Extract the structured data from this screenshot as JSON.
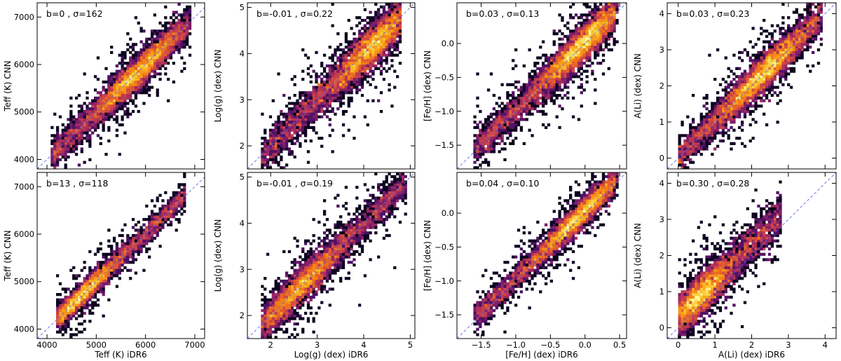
{
  "figure": {
    "colormap": "inferno-like density",
    "diagonal_color": "#5a6df0"
  },
  "chart_data": [
    {
      "type": "scatter",
      "subtype": "2d-density-histogram",
      "row": 0,
      "col": 0,
      "annotation": "b=0 , σ=162",
      "xlabel": "",
      "ylabel": "Teff (K) CNN",
      "xlim": [
        3800,
        7200
      ],
      "ylim": [
        3800,
        7300
      ],
      "xticks": [
        4000,
        5000,
        6000,
        7000
      ],
      "yticks": [
        4000,
        5000,
        6000,
        7000
      ],
      "xtick_labels": [
        "",
        "",
        "",
        ""
      ],
      "ytick_labels": [
        "4000",
        "5000",
        "6000",
        "7000"
      ],
      "distribution": {
        "x_range": [
          4100,
          6900
        ],
        "x_peak": 5800,
        "scatter_sd": 160,
        "bias": 0,
        "density": 1.0
      },
      "reference_line": "y = x"
    },
    {
      "type": "scatter",
      "subtype": "2d-density-histogram",
      "row": 0,
      "col": 1,
      "annotation": "b=-0.01 , σ=0.22",
      "xlabel": "",
      "ylabel": "Log(g) (dex) CNN",
      "xlim": [
        1.5,
        5.1
      ],
      "ylim": [
        1.5,
        5.1
      ],
      "xticks": [
        2,
        3,
        4,
        5
      ],
      "yticks": [
        2,
        3,
        4,
        5
      ],
      "xtick_labels": [
        "",
        "",
        "",
        ""
      ],
      "ytick_labels": [
        "2",
        "3",
        "4",
        "5"
      ],
      "distribution": {
        "x_range": [
          1.8,
          4.8
        ],
        "x_peak": 4.2,
        "scatter_sd": 0.22,
        "bias": -0.01,
        "density": 1.0
      },
      "reference_line": "y = x"
    },
    {
      "type": "scatter",
      "subtype": "2d-density-histogram",
      "row": 0,
      "col": 2,
      "annotation": "b=0.03 , σ=0.13",
      "xlabel": "",
      "ylabel": "[Fe/H] (dex) CNN",
      "xlim": [
        -1.85,
        0.6
      ],
      "ylim": [
        -1.85,
        0.6
      ],
      "xticks": [
        -1.5,
        -1.0,
        -0.5,
        0.0,
        0.5
      ],
      "yticks": [
        -1.5,
        -1.0,
        -0.5,
        0.0
      ],
      "xtick_labels": [
        "",
        "",
        "",
        "",
        ""
      ],
      "ytick_labels": [
        "−1.5",
        "−1.0",
        "−0.5",
        "0.0"
      ],
      "distribution": {
        "x_range": [
          -1.6,
          0.45
        ],
        "x_peak": -0.05,
        "scatter_sd": 0.13,
        "bias": 0.03,
        "density": 1.0
      },
      "reference_line": "y = x"
    },
    {
      "type": "scatter",
      "subtype": "2d-density-histogram",
      "row": 0,
      "col": 3,
      "annotation": "b=0.03 , σ=0.23",
      "xlabel": "",
      "ylabel": "A(Li) (dex) CNN",
      "xlim": [
        -0.3,
        4.3
      ],
      "ylim": [
        -0.3,
        4.3
      ],
      "xticks": [
        0,
        1,
        2,
        3,
        4
      ],
      "yticks": [
        0,
        1,
        2,
        3,
        4
      ],
      "xtick_labels": [
        "",
        "",
        "",
        "",
        ""
      ],
      "ytick_labels": [
        "0",
        "1",
        "2",
        "3",
        "4"
      ],
      "distribution": {
        "x_range": [
          0.0,
          3.9
        ],
        "x_peak": 2.3,
        "scatter_sd": 0.23,
        "bias": 0.03,
        "density": 1.0
      },
      "reference_line": "y = x"
    },
    {
      "type": "scatter",
      "subtype": "2d-density-histogram",
      "row": 1,
      "col": 0,
      "annotation": "b=13 , σ=118",
      "xlabel": "Teff (K) iDR6",
      "ylabel": "Teff (K) CNN",
      "xlim": [
        3800,
        7200
      ],
      "ylim": [
        3800,
        7300
      ],
      "xticks": [
        4000,
        5000,
        6000,
        7000
      ],
      "yticks": [
        4000,
        5000,
        6000,
        7000
      ],
      "xtick_labels": [
        "4000",
        "5000",
        "6000",
        "7000"
      ],
      "ytick_labels": [
        "4000",
        "5000",
        "6000",
        "7000"
      ],
      "distribution": {
        "x_range": [
          4200,
          6800
        ],
        "x_peak": 4700,
        "scatter_sd": 120,
        "bias": 13,
        "density": 0.75
      },
      "reference_line": "y = x"
    },
    {
      "type": "scatter",
      "subtype": "2d-density-histogram",
      "row": 1,
      "col": 1,
      "annotation": "b=-0.01 , σ=0.19",
      "xlabel": "Log(g) (dex) iDR6",
      "ylabel": "Log(g) (dex) CNN",
      "xlim": [
        1.5,
        5.1
      ],
      "ylim": [
        1.5,
        5.1
      ],
      "xticks": [
        2,
        3,
        4,
        5
      ],
      "yticks": [
        2,
        3,
        4,
        5
      ],
      "xtick_labels": [
        "2",
        "3",
        "4",
        "5"
      ],
      "ytick_labels": [
        "2",
        "3",
        "4",
        "5"
      ],
      "distribution": {
        "x_range": [
          1.8,
          4.9
        ],
        "x_peak": 2.6,
        "scatter_sd": 0.19,
        "bias": -0.01,
        "density": 0.9
      },
      "reference_line": "y = x"
    },
    {
      "type": "scatter",
      "subtype": "2d-density-histogram",
      "row": 1,
      "col": 2,
      "annotation": "b=0.04 , σ=0.10",
      "xlabel": "[Fe/H] (dex) iDR6",
      "ylabel": "[Fe/H] (dex) CNN",
      "xlim": [
        -1.85,
        0.6
      ],
      "ylim": [
        -1.85,
        0.6
      ],
      "xticks": [
        -1.5,
        -1.0,
        -0.5,
        0.0,
        0.5
      ],
      "yticks": [
        -1.5,
        -1.0,
        -0.5,
        0.0
      ],
      "xtick_labels": [
        "−1.5",
        "−1.0",
        "−0.5",
        "0.0",
        "0.5"
      ],
      "ytick_labels": [
        "−1.5",
        "−1.0",
        "−0.5",
        "0.0"
      ],
      "distribution": {
        "x_range": [
          -1.6,
          0.45
        ],
        "x_peak": -0.1,
        "scatter_sd": 0.1,
        "bias": 0.04,
        "density": 0.85
      },
      "reference_line": "y = x"
    },
    {
      "type": "scatter",
      "subtype": "2d-density-histogram",
      "row": 1,
      "col": 3,
      "annotation": "b=0.30 , σ=0.28",
      "xlabel": "A(Li) (dex) iDR6",
      "ylabel": "A(Li) (dex) CNN",
      "xlim": [
        -0.3,
        4.3
      ],
      "ylim": [
        -0.3,
        4.3
      ],
      "xticks": [
        0,
        1,
        2,
        3,
        4
      ],
      "yticks": [
        0,
        1,
        2,
        3,
        4
      ],
      "xtick_labels": [
        "0",
        "1",
        "2",
        "3",
        "4"
      ],
      "ytick_labels": [
        "0",
        "1",
        "2",
        "3",
        "4"
      ],
      "distribution": {
        "x_range": [
          0.0,
          2.8
        ],
        "x_peak": 0.6,
        "scatter_sd": 0.28,
        "bias": 0.3,
        "density": 0.8
      },
      "reference_line": "y = x"
    }
  ]
}
